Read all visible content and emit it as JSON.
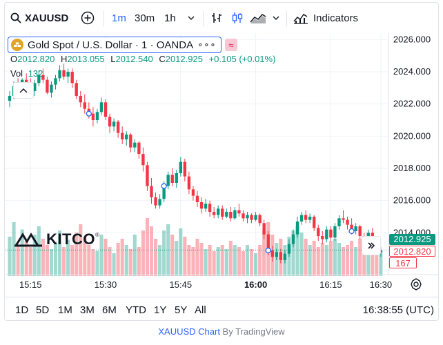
{
  "toolbar": {
    "symbol": "XAUUSD",
    "intervals": [
      "1m",
      "30m",
      "1h"
    ],
    "active_interval": "1m",
    "indicators_label": "Indicators"
  },
  "legend": {
    "title": "Gold Spot / U.S. Dollar · 1 · OANDA",
    "more": "∘∘∘",
    "compare": "≈",
    "ohlc": {
      "o_label": "O",
      "o": "2012.820",
      "h_label": "H",
      "h": "2013.055",
      "l_label": "L",
      "l": "2012.540",
      "c_label": "C",
      "c": "2012.925",
      "change": "+0.105 (+0.01%)"
    },
    "vol_label": "Vol",
    "vol": "132"
  },
  "watermark": {
    "text": "KITCO",
    "reg": "®"
  },
  "price_axis": {
    "ticks": [
      "2026.000",
      "2024.000",
      "2022.000",
      "2020.000",
      "2018.000",
      "2016.000",
      "2014.000"
    ],
    "last_price": "2012.925",
    "prev_close": "2012.820",
    "volume": "167"
  },
  "time_axis": {
    "ticks": [
      "15:15",
      "15:30",
      "15:45",
      "16:00",
      "16:15",
      "16:30"
    ],
    "bold_tick": "16:00"
  },
  "ranges": [
    "1D",
    "5D",
    "1M",
    "3M",
    "6M",
    "YTD",
    "1Y",
    "5Y",
    "All"
  ],
  "clock": "16:38:55 (UTC)",
  "footer": {
    "link": "XAUUSD Chart",
    "by": " By TradingView"
  },
  "colors": {
    "up": "#089981",
    "down": "#f23645",
    "accent": "#2962ff"
  },
  "chart_data": {
    "type": "candlestick",
    "symbol": "XAUUSD",
    "interval": "1m",
    "ylim": [
      2011.4,
      2026.4
    ],
    "x_ticks": [
      "15:15",
      "15:30",
      "15:45",
      "16:00",
      "16:15",
      "16:30"
    ],
    "ohlc_shape": [
      [
        2022.2,
        2022.8,
        2021.8,
        2022.5
      ],
      [
        2022.5,
        2023.4,
        2022.3,
        2023.1
      ],
      [
        2023.1,
        2023.6,
        2022.7,
        2022.9
      ],
      [
        2022.9,
        2023.6,
        2022.6,
        2023.5
      ],
      [
        2023.5,
        2023.9,
        2023.0,
        2023.2
      ],
      [
        2023.2,
        2023.6,
        2022.6,
        2022.8
      ],
      [
        2022.8,
        2023.5,
        2022.5,
        2023.3
      ],
      [
        2023.3,
        2024.1,
        2023.1,
        2023.8
      ],
      [
        2023.8,
        2024.2,
        2023.3,
        2023.5
      ],
      [
        2023.5,
        2023.7,
        2022.6,
        2022.7
      ],
      [
        2022.7,
        2023.4,
        2022.4,
        2023.2
      ],
      [
        2023.2,
        2023.8,
        2022.9,
        2023.6
      ],
      [
        2023.6,
        2024.4,
        2023.4,
        2024.1
      ],
      [
        2024.1,
        2024.5,
        2023.5,
        2023.7
      ],
      [
        2023.7,
        2024.2,
        2023.3,
        2024.0
      ],
      [
        2024.0,
        2024.2,
        2023.0,
        2023.3
      ],
      [
        2023.3,
        2023.5,
        2022.3,
        2022.5
      ],
      [
        2022.5,
        2022.8,
        2021.8,
        2022.1
      ],
      [
        2022.1,
        2022.6,
        2021.4,
        2021.7
      ],
      [
        2021.7,
        2022.1,
        2021.1,
        2021.4
      ],
      [
        2021.4,
        2021.8,
        2020.6,
        2021.0
      ],
      [
        2021.0,
        2021.7,
        2020.8,
        2021.5
      ],
      [
        2021.5,
        2022.4,
        2021.3,
        2022.1
      ],
      [
        2022.1,
        2022.3,
        2021.0,
        2021.2
      ],
      [
        2021.2,
        2021.4,
        2020.2,
        2020.6
      ],
      [
        2020.6,
        2021.1,
        2020.3,
        2020.9
      ],
      [
        2020.9,
        2021.0,
        2019.9,
        2020.2
      ],
      [
        2020.2,
        2020.6,
        2019.5,
        2019.8
      ],
      [
        2019.8,
        2020.3,
        2019.4,
        2020.1
      ],
      [
        2020.1,
        2020.2,
        2019.0,
        2019.3
      ],
      [
        2019.3,
        2019.8,
        2019.0,
        2019.6
      ],
      [
        2019.6,
        2019.7,
        2018.6,
        2018.9
      ],
      [
        2018.9,
        2019.3,
        2017.8,
        2018.2
      ],
      [
        2018.2,
        2018.4,
        2016.6,
        2016.9
      ],
      [
        2016.9,
        2017.4,
        2015.8,
        2016.2
      ],
      [
        2016.2,
        2016.5,
        2015.5,
        2015.7
      ],
      [
        2015.7,
        2016.4,
        2015.5,
        2016.1
      ],
      [
        2016.1,
        2017.2,
        2015.9,
        2016.9
      ],
      [
        2016.9,
        2017.8,
        2016.7,
        2017.6
      ],
      [
        2017.6,
        2018.0,
        2016.9,
        2017.1
      ],
      [
        2017.1,
        2017.9,
        2016.8,
        2017.7
      ],
      [
        2017.7,
        2018.7,
        2017.5,
        2018.4
      ],
      [
        2018.4,
        2018.6,
        2017.2,
        2017.5
      ],
      [
        2017.5,
        2017.8,
        2016.4,
        2016.7
      ],
      [
        2016.7,
        2016.9,
        2016.0,
        2016.3
      ],
      [
        2016.3,
        2016.6,
        2015.6,
        2015.9
      ],
      [
        2015.9,
        2016.2,
        2015.2,
        2015.5
      ],
      [
        2015.5,
        2016.1,
        2015.3,
        2015.8
      ],
      [
        2015.8,
        2016.0,
        2015.0,
        2015.3
      ],
      [
        2015.3,
        2015.6,
        2014.9,
        2015.1
      ],
      [
        2015.1,
        2015.7,
        2014.9,
        2015.5
      ],
      [
        2015.5,
        2015.7,
        2014.8,
        2015.0
      ],
      [
        2015.0,
        2015.5,
        2014.9,
        2015.3
      ],
      [
        2015.3,
        2015.6,
        2014.7,
        2014.9
      ],
      [
        2014.9,
        2015.6,
        2014.8,
        2015.4
      ],
      [
        2015.4,
        2015.8,
        2015.0,
        2015.2
      ],
      [
        2015.2,
        2015.4,
        2014.7,
        2014.9
      ],
      [
        2014.9,
        2015.3,
        2014.6,
        2015.1
      ],
      [
        2015.1,
        2015.2,
        2014.6,
        2014.8
      ],
      [
        2014.8,
        2015.3,
        2014.7,
        2015.1
      ],
      [
        2015.1,
        2015.2,
        2014.4,
        2014.6
      ],
      [
        2014.6,
        2014.8,
        2013.6,
        2013.9
      ],
      [
        2013.9,
        2014.1,
        2012.6,
        2012.9
      ],
      [
        2012.9,
        2013.2,
        2012.2,
        2012.5
      ],
      [
        2012.5,
        2013.0,
        2012.3,
        2012.8
      ],
      [
        2012.8,
        2013.0,
        2012.1,
        2012.3
      ],
      [
        2012.3,
        2012.9,
        2012.1,
        2012.7
      ],
      [
        2012.7,
        2013.6,
        2012.5,
        2013.3
      ],
      [
        2013.3,
        2014.2,
        2013.1,
        2013.9
      ],
      [
        2013.9,
        2015.0,
        2013.7,
        2014.7
      ],
      [
        2014.7,
        2015.3,
        2014.5,
        2015.1
      ],
      [
        2015.1,
        2015.4,
        2014.6,
        2014.8
      ],
      [
        2014.8,
        2015.2,
        2014.6,
        2015.0
      ],
      [
        2015.0,
        2015.1,
        2014.1,
        2014.3
      ],
      [
        2014.3,
        2014.5,
        2013.5,
        2013.8
      ],
      [
        2013.8,
        2014.1,
        2013.3,
        2013.6
      ],
      [
        2013.6,
        2014.4,
        2013.4,
        2014.2
      ],
      [
        2014.2,
        2014.4,
        2013.5,
        2013.7
      ],
      [
        2013.7,
        2014.6,
        2013.5,
        2014.4
      ],
      [
        2014.4,
        2015.1,
        2014.2,
        2014.9
      ],
      [
        2014.9,
        2015.4,
        2014.6,
        2014.8
      ],
      [
        2014.8,
        2015.0,
        2014.2,
        2014.5
      ],
      [
        2014.5,
        2014.9,
        2013.9,
        2014.1
      ],
      [
        2014.1,
        2014.6,
        2013.9,
        2014.4
      ],
      [
        2014.4,
        2014.5,
        2013.6,
        2013.8
      ],
      [
        2013.8,
        2014.0,
        2013.1,
        2013.3
      ],
      [
        2013.3,
        2014.2,
        2013.1,
        2014.0
      ],
      [
        2014.0,
        2014.3,
        2013.2,
        2013.4
      ],
      [
        2013.4,
        2013.6,
        2012.6,
        2012.8
      ],
      [
        2012.8,
        2013.1,
        2012.5,
        2012.9
      ]
    ],
    "volume_shape": [
      38,
      52,
      30,
      45,
      34,
      28,
      40,
      48,
      36,
      30,
      26,
      33,
      44,
      28,
      35,
      30,
      42,
      50,
      38,
      30,
      26,
      24,
      40,
      36,
      28,
      22,
      32,
      36,
      30,
      26,
      40,
      28,
      44,
      56,
      48,
      36,
      30,
      44,
      50,
      40,
      34,
      46,
      38,
      30,
      28,
      36,
      32,
      26,
      30,
      24,
      28,
      30,
      26,
      34,
      30,
      28,
      24,
      30,
      26,
      22,
      30,
      44,
      52,
      40,
      32,
      36,
      30,
      38,
      44,
      48,
      42,
      36,
      30,
      34,
      28,
      32,
      30,
      34,
      36,
      32,
      28,
      30,
      34,
      28,
      36,
      38,
      30,
      32,
      34,
      24
    ]
  }
}
